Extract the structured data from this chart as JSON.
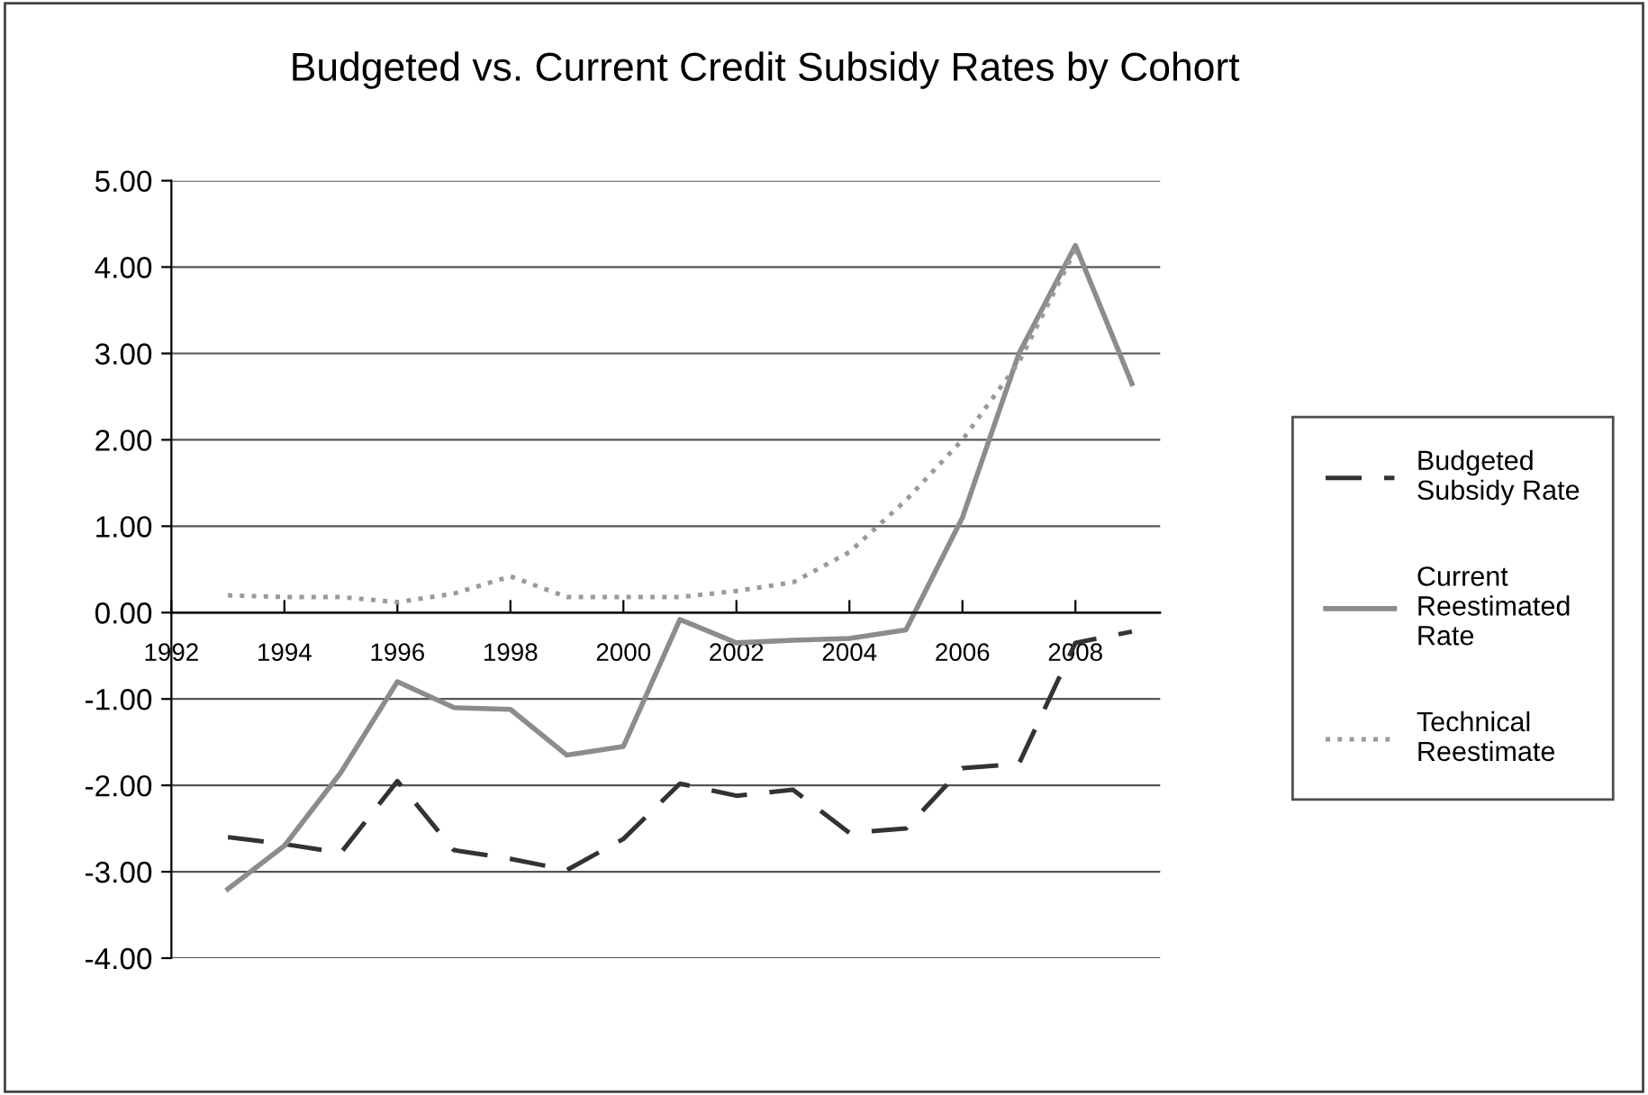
{
  "chart_data": {
    "type": "line",
    "title": "Budgeted vs. Current Credit Subsidy Rates by Cohort",
    "x": [
      1993,
      1994,
      1995,
      1996,
      1997,
      1998,
      1999,
      2000,
      2001,
      2002,
      2003,
      2004,
      2005,
      2006,
      2007,
      2008,
      2009
    ],
    "series": [
      {
        "name": "Budgeted Subsidy Rate",
        "color": "#333333",
        "line_style": "dashed",
        "values": [
          -2.6,
          -2.68,
          -2.78,
          -1.95,
          -2.75,
          -2.85,
          -2.98,
          -2.62,
          -1.98,
          -2.12,
          -2.05,
          -2.55,
          -2.5,
          -1.8,
          -1.75,
          -0.35,
          -0.22
        ]
      },
      {
        "name": "Current Reestimated Rate",
        "color": "#8c8c8c",
        "line_style": "solid",
        "values": [
          -3.2,
          -2.7,
          -1.85,
          -0.8,
          -1.1,
          -1.12,
          -1.65,
          -1.55,
          -0.08,
          -0.35,
          -0.32,
          -0.3,
          -0.2,
          1.1,
          3.0,
          4.25,
          2.65
        ]
      },
      {
        "name": "Technical Reestimate",
        "color": "#9a9a9a",
        "line_style": "dotted",
        "values": [
          0.2,
          0.18,
          0.18,
          0.12,
          0.22,
          0.42,
          0.18,
          0.18,
          0.18,
          0.25,
          0.35,
          0.7,
          1.3,
          2.0,
          2.9,
          4.2,
          null
        ]
      }
    ],
    "xlim": [
      1992,
      2009.5
    ],
    "xticks": [
      1992,
      1994,
      1996,
      1998,
      2000,
      2002,
      2004,
      2006,
      2008
    ],
    "ylim": [
      -4,
      5
    ],
    "yticks": [
      {
        "value": -4,
        "label": "-4.00"
      },
      {
        "value": -3,
        "label": "-3.00"
      },
      {
        "value": -2,
        "label": "-2.00"
      },
      {
        "value": -1,
        "label": "-1.00"
      },
      {
        "value": 0,
        "label": "0.00"
      },
      {
        "value": 1,
        "label": "1.00"
      },
      {
        "value": 2,
        "label": "2.00"
      },
      {
        "value": 3,
        "label": "3.00"
      },
      {
        "value": 4,
        "label": "4.00"
      },
      {
        "value": 5,
        "label": "5.00"
      }
    ],
    "grid": "y",
    "legend": "right",
    "marker": "none"
  }
}
